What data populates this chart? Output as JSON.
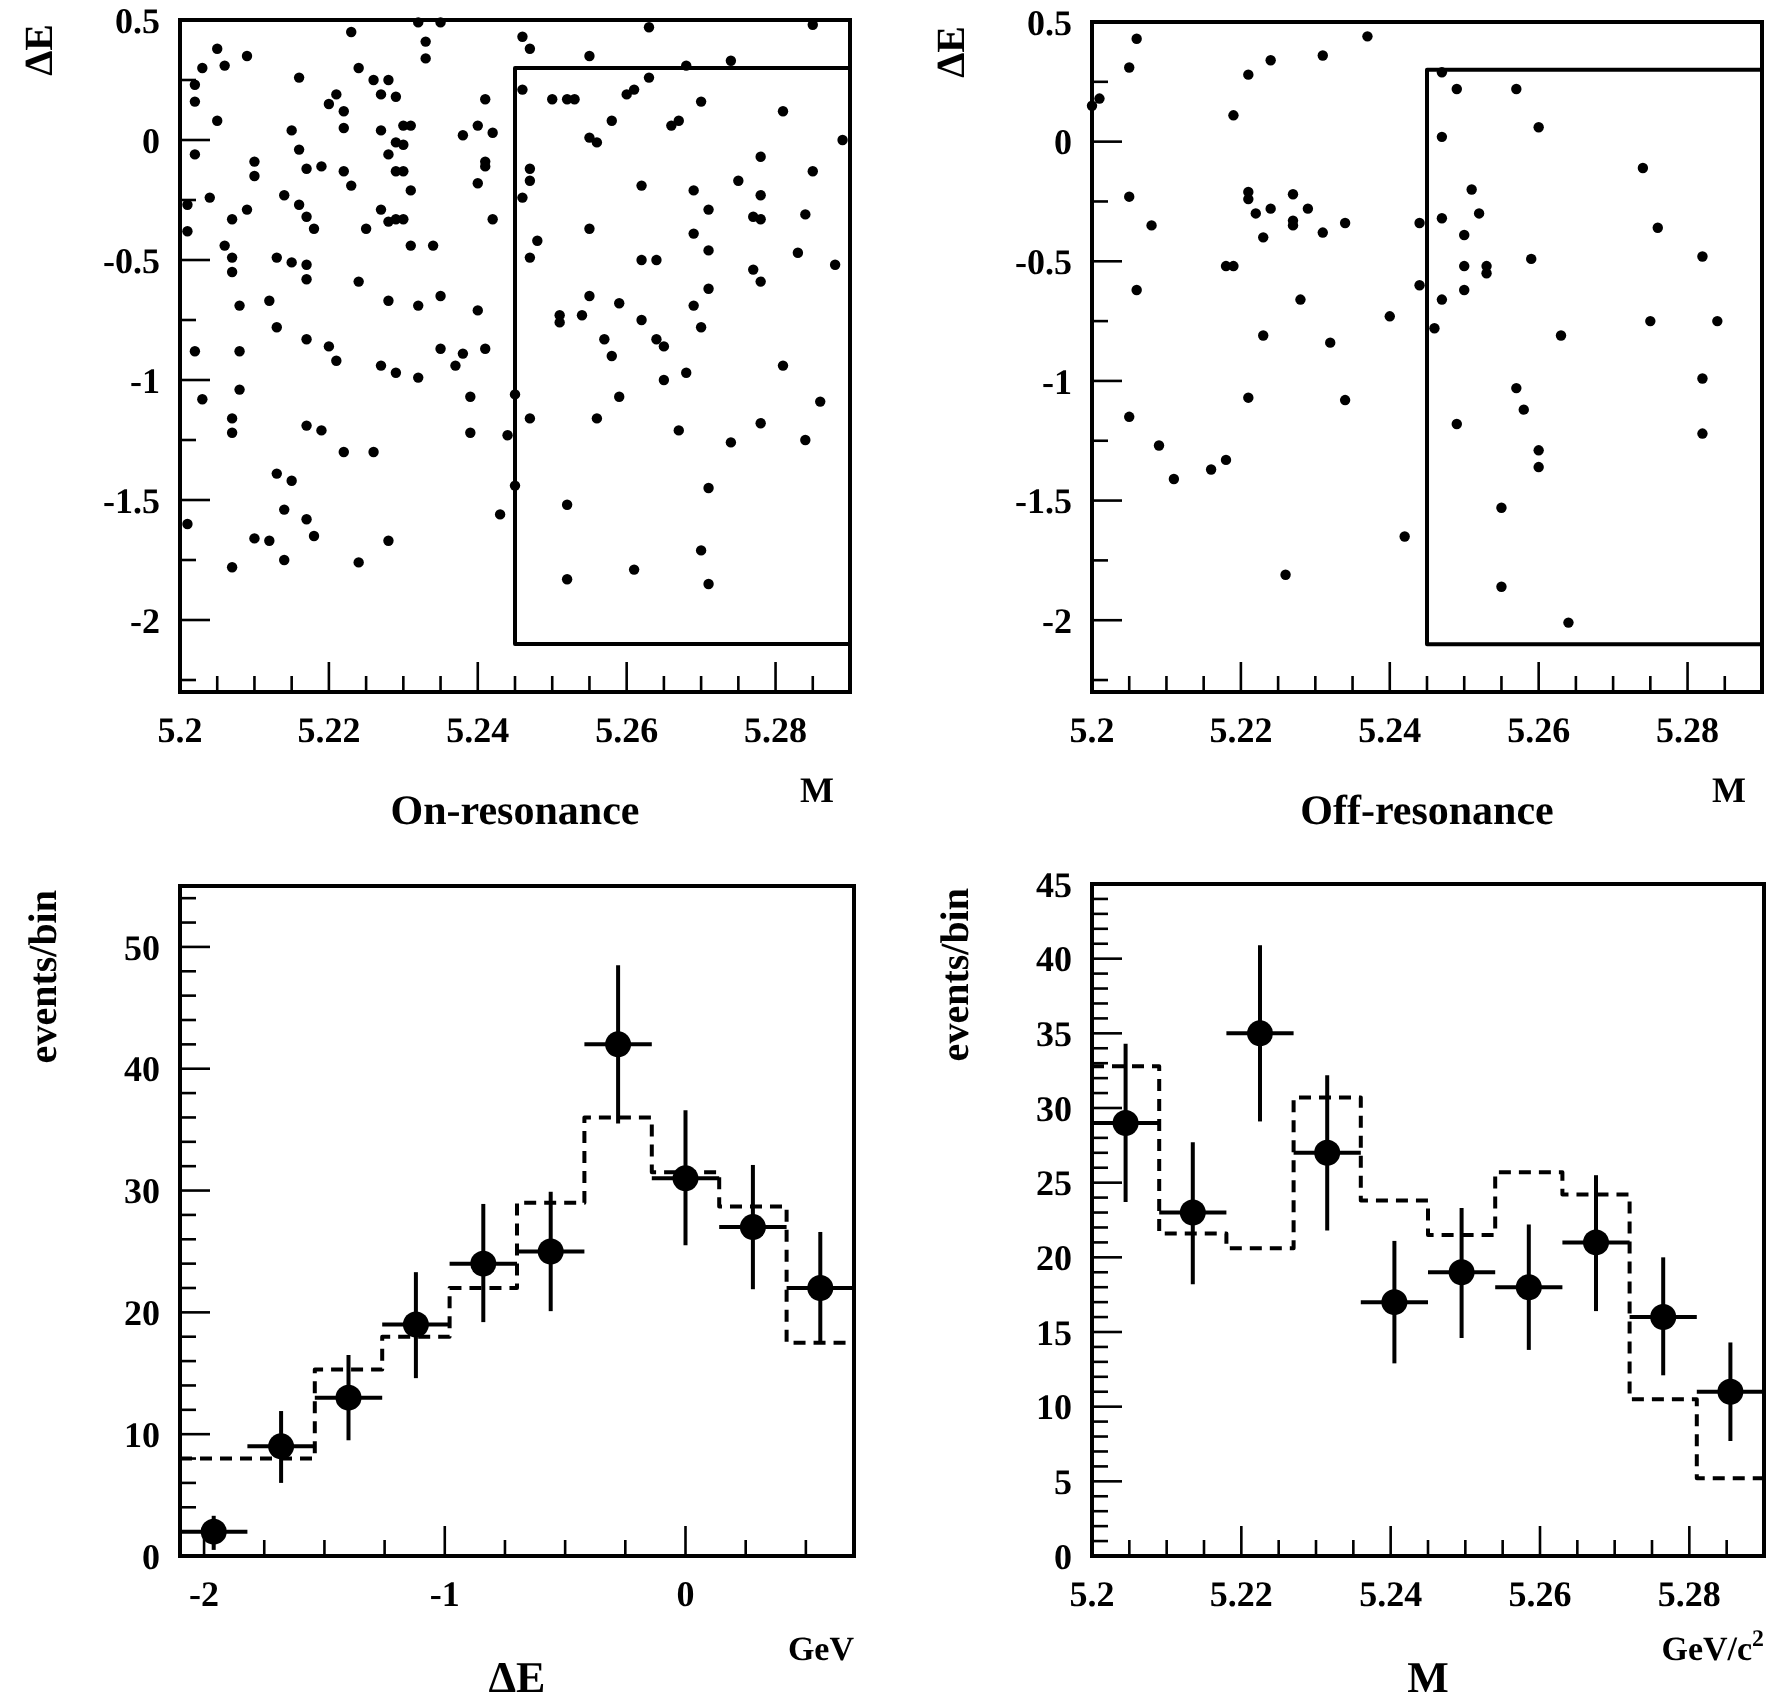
{
  "chart_data": [
    {
      "type": "scatter",
      "title": "On-resonance",
      "xlabel": "M",
      "ylabel": "ΔE",
      "xlim": [
        5.2,
        5.29
      ],
      "ylim": [
        -2.3,
        0.5
      ],
      "xticks": [
        5.2,
        {
          "value": 5.205,
          "label": null
        },
        {
          "value": 5.21,
          "label": null
        },
        {
          "value": 5.215,
          "label": null
        },
        5.22,
        {
          "value": 5.225,
          "label": null
        },
        {
          "value": 5.23,
          "label": null
        },
        {
          "value": 5.235,
          "label": null
        },
        5.24,
        {
          "value": 5.245,
          "label": null
        },
        {
          "value": 5.25,
          "label": null
        },
        {
          "value": 5.255,
          "label": null
        },
        5.26,
        {
          "value": 5.265,
          "label": null
        },
        {
          "value": 5.27,
          "label": null
        },
        {
          "value": 5.275,
          "label": null
        },
        5.28,
        {
          "value": 5.285,
          "label": null
        }
      ],
      "yticks": [
        0.5,
        {
          "value": 0.25,
          "label": null
        },
        0,
        {
          "value": -0.25,
          "label": null
        },
        -0.5,
        {
          "value": -0.75,
          "label": null
        },
        -1,
        {
          "value": -1.25,
          "label": null
        },
        -1.5,
        {
          "value": -1.75,
          "label": null
        },
        -2,
        {
          "value": -2.25,
          "label": null
        }
      ],
      "series": [
        {
          "color": "#000000",
          "marker": "circle",
          "x": [
            5.223,
            5.232,
            5.235,
            5.233,
            5.233,
            5.246,
            5.247,
            5.255,
            5.263,
            5.285,
            5.268,
            5.274,
            5.203,
            5.205,
            5.206,
            5.209,
            5.202,
            5.202,
            5.216,
            5.224,
            5.226,
            5.228,
            5.227,
            5.229,
            5.221,
            5.22,
            5.222,
            5.241,
            5.246,
            5.25,
            5.252,
            5.253,
            5.26,
            5.261,
            5.263,
            5.27,
            5.281,
            5.258,
            5.266,
            5.267,
            5.255,
            5.256,
            5.205,
            5.202,
            5.215,
            5.216,
            5.222,
            5.227,
            5.228,
            5.23,
            5.231,
            5.229,
            5.23,
            5.238,
            5.24,
            5.242,
            5.289,
            5.21,
            5.21,
            5.217,
            5.219,
            5.222,
            5.223,
            5.229,
            5.23,
            5.231,
            5.241,
            5.241,
            5.24,
            5.247,
            5.247,
            5.246,
            5.262,
            5.269,
            5.275,
            5.278,
            5.278,
            5.285,
            5.201,
            5.204,
            5.209,
            5.207,
            5.201,
            5.214,
            5.216,
            5.217,
            5.218,
            5.227,
            5.228,
            5.229,
            5.23,
            5.225,
            5.231,
            5.234,
            5.242,
            5.255,
            5.271,
            5.269,
            5.278,
            5.277,
            5.284,
            5.206,
            5.207,
            5.207,
            5.213,
            5.215,
            5.217,
            5.217,
            5.248,
            5.247,
            5.262,
            5.264,
            5.271,
            5.283,
            5.277,
            5.278,
            5.288,
            5.224,
            5.228,
            5.232,
            5.24,
            5.208,
            5.212,
            5.235,
            5.251,
            5.251,
            5.254,
            5.255,
            5.259,
            5.262,
            5.269,
            5.271,
            5.27,
            5.257,
            5.264,
            5.213,
            5.217,
            5.202,
            5.208,
            5.22,
            5.221,
            5.227,
            5.229,
            5.232,
            5.235,
            5.237,
            5.238,
            5.241,
            5.203,
            5.208,
            5.207,
            5.207,
            5.217,
            5.219,
            5.222,
            5.226,
            5.239,
            5.239,
            5.245,
            5.244,
            5.245,
            5.247,
            5.213,
            5.215,
            5.214,
            5.217,
            5.218,
            5.21,
            5.212,
            5.214,
            5.201,
            5.207,
            5.224,
            5.228,
            5.243,
            5.252,
            5.252,
            5.261,
            5.271,
            5.27,
            5.271,
            5.258,
            5.265,
            5.265,
            5.268,
            5.259,
            5.256,
            5.267,
            5.274,
            5.278,
            5.281,
            5.284,
            5.286
          ],
          "values": [
            0.45,
            0.49,
            0.49,
            0.41,
            0.34,
            0.43,
            0.38,
            0.35,
            0.47,
            0.48,
            0.31,
            0.33,
            0.3,
            0.38,
            0.31,
            0.35,
            0.23,
            0.16,
            0.26,
            0.3,
            0.25,
            0.25,
            0.19,
            0.18,
            0.19,
            0.15,
            0.12,
            0.17,
            0.21,
            0.17,
            0.17,
            0.17,
            0.19,
            0.21,
            0.26,
            0.16,
            0.12,
            0.08,
            0.06,
            0.08,
            0.01,
            -0.01,
            0.08,
            -0.06,
            0.04,
            -0.04,
            0.05,
            0.04,
            -0.06,
            0.06,
            0.06,
            -0.01,
            -0.02,
            0.02,
            0.06,
            0.03,
            0.0,
            -0.09,
            -0.15,
            -0.12,
            -0.11,
            -0.13,
            -0.19,
            -0.13,
            -0.13,
            -0.21,
            -0.09,
            -0.11,
            -0.18,
            -0.12,
            -0.17,
            -0.24,
            -0.19,
            -0.21,
            -0.17,
            -0.07,
            -0.23,
            -0.13,
            -0.27,
            -0.24,
            -0.29,
            -0.33,
            -0.38,
            -0.23,
            -0.27,
            -0.32,
            -0.37,
            -0.29,
            -0.34,
            -0.33,
            -0.33,
            -0.37,
            -0.44,
            -0.44,
            -0.33,
            -0.37,
            -0.29,
            -0.39,
            -0.33,
            -0.32,
            -0.31,
            -0.44,
            -0.49,
            -0.55,
            -0.49,
            -0.51,
            -0.52,
            -0.58,
            -0.42,
            -0.49,
            -0.5,
            -0.5,
            -0.46,
            -0.47,
            -0.54,
            -0.59,
            -0.52,
            -0.59,
            -0.67,
            -0.69,
            -0.71,
            -0.69,
            -0.67,
            -0.65,
            -0.73,
            -0.76,
            -0.73,
            -0.65,
            -0.68,
            -0.75,
            -0.69,
            -0.62,
            -0.78,
            -0.83,
            -0.83,
            -0.78,
            -0.83,
            -0.88,
            -0.88,
            -0.86,
            -0.92,
            -0.94,
            -0.97,
            -0.99,
            -0.87,
            -0.94,
            -0.89,
            -0.87,
            -1.08,
            -1.04,
            -1.16,
            -1.22,
            -1.19,
            -1.21,
            -1.3,
            -1.3,
            -1.07,
            -1.22,
            -1.06,
            -1.23,
            -1.44,
            -1.16,
            -1.39,
            -1.42,
            -1.54,
            -1.58,
            -1.65,
            -1.66,
            -1.67,
            -1.75,
            -1.6,
            -1.78,
            -1.76,
            -1.67,
            -1.56,
            -1.52,
            -1.83,
            -1.79,
            -1.45,
            -1.71,
            -1.85,
            -0.9,
            -0.86,
            -1.0,
            -0.97,
            -1.07,
            -1.16,
            -1.21,
            -1.26,
            -1.18,
            -0.94,
            -1.25,
            -1.09
          ]
        },
        {
          "type": "line",
          "color": "#000000",
          "marker": "none",
          "x": [
            5.29,
            5.245,
            5.245,
            5.29
          ],
          "values": [
            0.3,
            0.3,
            -2.1,
            -2.1
          ]
        }
      ]
    },
    {
      "type": "scatter",
      "title": "Off-resonance",
      "xlabel": "M",
      "ylabel": "ΔE",
      "xlim": [
        5.2,
        5.29
      ],
      "ylim": [
        -2.3,
        0.5
      ],
      "xticks": [
        5.2,
        {
          "value": 5.205,
          "label": null
        },
        {
          "value": 5.21,
          "label": null
        },
        {
          "value": 5.215,
          "label": null
        },
        5.22,
        {
          "value": 5.225,
          "label": null
        },
        {
          "value": 5.23,
          "label": null
        },
        {
          "value": 5.235,
          "label": null
        },
        5.24,
        {
          "value": 5.245,
          "label": null
        },
        {
          "value": 5.25,
          "label": null
        },
        {
          "value": 5.255,
          "label": null
        },
        5.26,
        {
          "value": 5.265,
          "label": null
        },
        {
          "value": 5.27,
          "label": null
        },
        {
          "value": 5.275,
          "label": null
        },
        5.28,
        {
          "value": 5.285,
          "label": null
        }
      ],
      "yticks": [
        0.5,
        {
          "value": 0.25,
          "label": null
        },
        0,
        {
          "value": -0.25,
          "label": null
        },
        -0.5,
        {
          "value": -0.75,
          "label": null
        },
        -1,
        {
          "value": -1.25,
          "label": null
        },
        -1.5,
        {
          "value": -1.75,
          "label": null
        },
        -2,
        {
          "value": -2.25,
          "label": null
        }
      ],
      "series": [
        {
          "color": "#000000",
          "marker": "circle",
          "x": [
            5.2,
            5.201,
            5.206,
            5.205,
            5.237,
            5.231,
            5.224,
            5.221,
            5.219,
            5.247,
            5.249,
            5.257,
            5.26,
            5.247,
            5.274,
            5.205,
            5.208,
            5.206,
            5.221,
            5.221,
            5.222,
            5.224,
            5.223,
            5.227,
            5.227,
            5.227,
            5.229,
            5.231,
            5.234,
            5.218,
            5.219,
            5.223,
            5.228,
            5.232,
            5.24,
            5.244,
            5.244,
            5.247,
            5.246,
            5.247,
            5.251,
            5.252,
            5.25,
            5.25,
            5.25,
            5.253,
            5.253,
            5.259,
            5.263,
            5.276,
            5.275,
            5.282,
            5.284,
            5.282,
            5.282,
            5.257,
            5.258,
            5.26,
            5.26,
            5.249,
            5.255,
            5.255,
            5.264,
            5.242,
            5.226,
            5.234,
            5.221,
            5.205,
            5.209,
            5.211,
            5.216,
            5.218
          ],
          "values": [
            0.15,
            0.18,
            0.43,
            0.31,
            0.44,
            0.36,
            0.34,
            0.28,
            0.11,
            0.29,
            0.22,
            0.22,
            0.06,
            0.02,
            -0.11,
            -0.23,
            -0.35,
            -0.62,
            -0.21,
            -0.24,
            -0.3,
            -0.28,
            -0.4,
            -0.22,
            -0.33,
            -0.35,
            -0.28,
            -0.38,
            -0.34,
            -0.52,
            -0.52,
            -0.81,
            -0.66,
            -0.84,
            -0.73,
            -0.34,
            -0.6,
            -0.66,
            -0.78,
            -0.32,
            -0.2,
            -0.3,
            -0.39,
            -0.52,
            -0.62,
            -0.52,
            -0.55,
            -0.49,
            -0.81,
            -0.36,
            -0.75,
            -0.48,
            -0.75,
            -0.99,
            -1.22,
            -1.03,
            -1.12,
            -1.29,
            -1.36,
            -1.18,
            -1.53,
            -1.86,
            -2.01,
            -1.65,
            -1.81,
            -1.08,
            -1.07,
            -1.15,
            -1.27,
            -1.41,
            -1.37,
            -1.33
          ]
        },
        {
          "type": "line",
          "color": "#000000",
          "marker": "none",
          "x": [
            5.29,
            5.245,
            5.245,
            5.29
          ],
          "values": [
            0.3,
            0.3,
            -2.1,
            -2.1
          ]
        }
      ]
    },
    {
      "type": "scatter",
      "xlabel": "ΔE",
      "ylabel": "events/bin",
      "annotations": [
        "GeV"
      ],
      "xlim": [
        -2.1,
        0.7
      ],
      "ylim": [
        0,
        55
      ],
      "xticks": [
        -2,
        {
          "value": -1.75,
          "label": null
        },
        {
          "value": -1.5,
          "label": null
        },
        {
          "value": -1.25,
          "label": null
        },
        -1,
        {
          "value": -0.75,
          "label": null
        },
        {
          "value": -0.5,
          "label": null
        },
        {
          "value": -0.25,
          "label": null
        },
        0,
        {
          "value": 0.25,
          "label": null
        },
        {
          "value": 0.5,
          "label": null
        }
      ],
      "yticks": [
        0,
        {
          "value": 2,
          "label": null
        },
        {
          "value": 4,
          "label": null
        },
        {
          "value": 6,
          "label": null
        },
        {
          "value": 8,
          "label": null
        },
        10,
        {
          "value": 12,
          "label": null
        },
        {
          "value": 14,
          "label": null
        },
        {
          "value": 16,
          "label": null
        },
        {
          "value": 18,
          "label": null
        },
        20,
        {
          "value": 22,
          "label": null
        },
        {
          "value": 24,
          "label": null
        },
        {
          "value": 26,
          "label": null
        },
        {
          "value": 28,
          "label": null
        },
        30,
        {
          "value": 32,
          "label": null
        },
        {
          "value": 34,
          "label": null
        },
        {
          "value": 36,
          "label": null
        },
        {
          "value": 38,
          "label": null
        },
        40,
        {
          "value": 42,
          "label": null
        },
        {
          "value": 44,
          "label": null
        },
        {
          "value": 46,
          "label": null
        },
        {
          "value": 48,
          "label": null
        },
        50,
        {
          "value": 52,
          "label": null
        },
        {
          "value": 54,
          "label": null
        }
      ],
      "series": [
        {
          "type": "histogram",
          "color": "#000000",
          "line_style": "dashed",
          "bins": [
            -2.1,
            -1.82,
            -1.54,
            -1.26,
            -0.98,
            -0.7,
            -0.42,
            -0.14,
            0.14,
            0.42,
            0.7
          ],
          "values": [
            8,
            8,
            15.3,
            18,
            22,
            29,
            36,
            31.5,
            28.7,
            17.5
          ]
        },
        {
          "color": "#000000",
          "marker": "circle",
          "x": [
            -1.96,
            -1.68,
            -1.4,
            -1.12,
            -0.84,
            -0.56,
            -0.28,
            0,
            0.28,
            0.56
          ],
          "values": [
            2,
            9,
            13,
            19,
            24,
            25,
            42,
            31,
            27,
            22
          ],
          "errors": [
            [
              0.5,
              3.3
            ],
            [
              6,
              11.9
            ],
            [
              9.5,
              16.5
            ],
            [
              14.6,
              23.3
            ],
            [
              19.2,
              28.9
            ],
            [
              20.1,
              29.9
            ],
            [
              35.5,
              48.5
            ],
            [
              25.5,
              36.6
            ],
            [
              21.9,
              32.1
            ],
            [
              17.6,
              26.6
            ]
          ],
          "xerrors": [
            0.14,
            0.14,
            0.14,
            0.14,
            0.14,
            0.14,
            0.14,
            0.14,
            0.14,
            0.14
          ]
        }
      ]
    },
    {
      "type": "scatter",
      "xlabel": "M",
      "ylabel": "events/bin",
      "annotations": [
        "GeV/c$^{2}$"
      ],
      "xlim": [
        5.2,
        5.29
      ],
      "ylim": [
        0,
        45
      ],
      "xticks": [
        5.2,
        {
          "value": 5.205,
          "label": null
        },
        {
          "value": 5.21,
          "label": null
        },
        {
          "value": 5.215,
          "label": null
        },
        5.22,
        {
          "value": 5.225,
          "label": null
        },
        {
          "value": 5.23,
          "label": null
        },
        {
          "value": 5.235,
          "label": null
        },
        5.24,
        {
          "value": 5.245,
          "label": null
        },
        {
          "value": 5.25,
          "label": null
        },
        {
          "value": 5.255,
          "label": null
        },
        5.26,
        {
          "value": 5.265,
          "label": null
        },
        {
          "value": 5.27,
          "label": null
        },
        {
          "value": 5.275,
          "label": null
        },
        5.28,
        {
          "value": 5.285,
          "label": null
        }
      ],
      "yticks": [
        0,
        {
          "value": 1,
          "label": null
        },
        {
          "value": 2,
          "label": null
        },
        {
          "value": 3,
          "label": null
        },
        {
          "value": 4,
          "label": null
        },
        5,
        {
          "value": 6,
          "label": null
        },
        {
          "value": 7,
          "label": null
        },
        {
          "value": 8,
          "label": null
        },
        {
          "value": 9,
          "label": null
        },
        10,
        {
          "value": 11,
          "label": null
        },
        {
          "value": 12,
          "label": null
        },
        {
          "value": 13,
          "label": null
        },
        {
          "value": 14,
          "label": null
        },
        15,
        {
          "value": 16,
          "label": null
        },
        {
          "value": 17,
          "label": null
        },
        {
          "value": 18,
          "label": null
        },
        {
          "value": 19,
          "label": null
        },
        20,
        {
          "value": 21,
          "label": null
        },
        {
          "value": 22,
          "label": null
        },
        {
          "value": 23,
          "label": null
        },
        {
          "value": 24,
          "label": null
        },
        25,
        {
          "value": 26,
          "label": null
        },
        {
          "value": 27,
          "label": null
        },
        {
          "value": 28,
          "label": null
        },
        {
          "value": 29,
          "label": null
        },
        30,
        {
          "value": 31,
          "label": null
        },
        {
          "value": 32,
          "label": null
        },
        {
          "value": 33,
          "label": null
        },
        {
          "value": 34,
          "label": null
        },
        35,
        {
          "value": 36,
          "label": null
        },
        {
          "value": 37,
          "label": null
        },
        {
          "value": 38,
          "label": null
        },
        {
          "value": 39,
          "label": null
        },
        40,
        {
          "value": 41,
          "label": null
        },
        {
          "value": 42,
          "label": null
        },
        {
          "value": 43,
          "label": null
        },
        {
          "value": 44,
          "label": null
        },
        45
      ],
      "series": [
        {
          "type": "histogram",
          "color": "#000000",
          "line_style": "dashed",
          "bins": [
            5.2,
            5.209,
            5.218,
            5.227,
            5.236,
            5.245,
            5.254,
            5.263,
            5.272,
            5.281,
            5.29
          ],
          "values": [
            32.8,
            21.6,
            20.6,
            30.7,
            23.8,
            21.5,
            25.7,
            24.2,
            10.5,
            5.2
          ]
        },
        {
          "color": "#000000",
          "marker": "circle",
          "x": [
            5.2045,
            5.2135,
            5.2225,
            5.2315,
            5.2405,
            5.2495,
            5.2585,
            5.2675,
            5.2765,
            5.2855
          ],
          "values": [
            29,
            23,
            35,
            27,
            17,
            19,
            18,
            21,
            16,
            11
          ],
          "errors": [
            [
              23.7,
              34.3
            ],
            [
              18.2,
              27.7
            ],
            [
              29.1,
              40.9
            ],
            [
              21.8,
              32.2
            ],
            [
              12.9,
              21.1
            ],
            [
              14.6,
              23.3
            ],
            [
              13.8,
              22.2
            ],
            [
              16.4,
              25.5
            ],
            [
              12.1,
              20.0
            ],
            [
              7.7,
              14.3
            ]
          ],
          "xerrors": [
            0.0045,
            0.0045,
            0.0045,
            0.0045,
            0.0045,
            0.0045,
            0.0045,
            0.0045,
            0.0045,
            0.0045
          ]
        }
      ]
    }
  ]
}
